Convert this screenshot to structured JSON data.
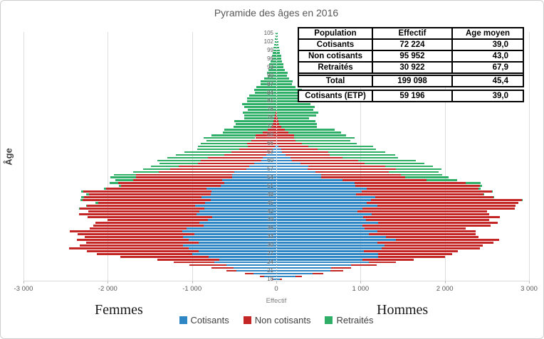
{
  "chart_data": {
    "type": "bar",
    "subtype": "population-pyramid-stacked",
    "title": "Pyramide des âges en 2016",
    "xlabel": "Effectif",
    "ylabel": "Âge",
    "left_label": "Femmes",
    "right_label": "Hommes",
    "xlim": [
      -3000,
      3000
    ],
    "x_ticks": [
      {
        "label": "-3 000",
        "value": -3000
      },
      {
        "label": "-2 000",
        "value": -2000
      },
      {
        "label": "-1 000",
        "value": -1000
      },
      {
        "label": "0",
        "value": 0
      },
      {
        "label": "1 000",
        "value": 1000
      },
      {
        "label": "2 000",
        "value": 2000
      },
      {
        "label": "3 000",
        "value": 3000
      }
    ],
    "gridline_values": [
      -3000,
      -2000,
      -1000,
      1000,
      2000,
      3000
    ],
    "age_min": 18,
    "age_max": 105,
    "age_tick_step": 3,
    "age_ticks": [
      18,
      21,
      24,
      27,
      30,
      33,
      36,
      39,
      42,
      45,
      48,
      51,
      54,
      57,
      60,
      63,
      66,
      69,
      72,
      75,
      78,
      81,
      84,
      87,
      90,
      93,
      96,
      99,
      102,
      105
    ],
    "series_order": [
      "cotisants",
      "non_cotisants",
      "retraites"
    ],
    "colors": {
      "cotisants": "#2E86C5",
      "non_cotisants": "#C42525",
      "retraites": "#2FAE68"
    },
    "legend": [
      {
        "key": "cotisants",
        "label": "Cotisants",
        "color": "#2E86C5"
      },
      {
        "key": "non_cotisants",
        "label": "Non cotisants",
        "color": "#C42525"
      },
      {
        "key": "retraites",
        "label": "Retraités",
        "color": "#2FAE68"
      }
    ],
    "control_ages": [
      18,
      21,
      24,
      27,
      30,
      33,
      36,
      39,
      42,
      45,
      48,
      51,
      54,
      57,
      60,
      63,
      66,
      69,
      72,
      75,
      78,
      81,
      84,
      87,
      90,
      93,
      96,
      99,
      102,
      105
    ],
    "femmes": {
      "cotisants": [
        30,
        420,
        685,
        925,
        1015,
        1085,
        985,
        840,
        870,
        905,
        790,
        710,
        570,
        380,
        200,
        60,
        0,
        0,
        0,
        0,
        0,
        0,
        0,
        0,
        0,
        0,
        0,
        0,
        0,
        0
      ],
      "non_cotisants": [
        20,
        120,
        555,
        1175,
        1400,
        1255,
        1255,
        1310,
        1370,
        1400,
        1420,
        1265,
        1080,
        910,
        680,
        450,
        325,
        220,
        60,
        20,
        0,
        0,
        0,
        0,
        0,
        0,
        0,
        0,
        0,
        0
      ],
      "retraites": [
        0,
        0,
        0,
        0,
        0,
        0,
        0,
        0,
        0,
        25,
        30,
        25,
        275,
        320,
        475,
        575,
        540,
        550,
        465,
        380,
        380,
        360,
        290,
        190,
        120,
        85,
        55,
        35,
        20,
        10
      ]
    },
    "hommes": {
      "cotisants": [
        40,
        620,
        1015,
        1170,
        1265,
        1265,
        1110,
        1050,
        1080,
        1095,
        1075,
        1000,
        585,
        415,
        200,
        80,
        0,
        0,
        0,
        0,
        0,
        0,
        0,
        0,
        0,
        0,
        0,
        0,
        0,
        0
      ],
      "non_cotisants": [
        25,
        180,
        335,
        1015,
        1225,
        1210,
        1255,
        1510,
        1600,
        1735,
        1545,
        1355,
        985,
        940,
        740,
        500,
        280,
        200,
        50,
        15,
        0,
        0,
        0,
        0,
        0,
        0,
        0,
        0,
        0,
        0
      ],
      "retraites": [
        0,
        0,
        0,
        0,
        0,
        0,
        0,
        0,
        0,
        0,
        10,
        25,
        530,
        525,
        740,
        675,
        720,
        650,
        475,
        410,
        470,
        390,
        310,
        210,
        130,
        90,
        60,
        38,
        22,
        12
      ]
    }
  },
  "table": {
    "headers": [
      "Population",
      "Effectif",
      "Age moyen"
    ],
    "rows": [
      [
        "Cotisants",
        "72 224",
        "39,0"
      ],
      [
        "Non cotisants",
        "95 952",
        "43,0"
      ],
      [
        "Retraités",
        "30 922",
        "67,9"
      ]
    ],
    "total_row": [
      "Total",
      "199 098",
      "45,4"
    ],
    "etp_row": [
      "Cotisants (ETP)",
      "59 196",
      "39,0"
    ]
  }
}
